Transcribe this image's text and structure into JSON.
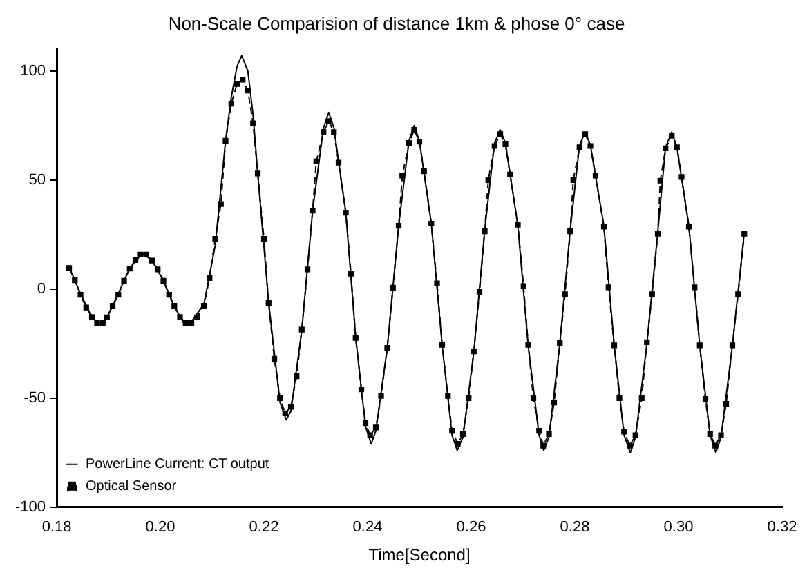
{
  "chart_data": {
    "type": "line",
    "title": "Non-Scale Comparision of distance 1km & phose 0° case",
    "xlabel": "Time[Second]",
    "xlim": [
      0.18,
      0.32
    ],
    "xticks": [
      {
        "value": 0.18,
        "label": "0.18"
      },
      {
        "value": 0.2,
        "label": "0.20"
      },
      {
        "value": 0.22,
        "label": "0.22"
      },
      {
        "value": 0.24,
        "label": "0.24"
      },
      {
        "value": 0.26,
        "label": "0.26"
      },
      {
        "value": 0.28,
        "label": "0.28"
      },
      {
        "value": 0.3,
        "label": "0.30"
      },
      {
        "value": 0.32,
        "label": "0.32"
      }
    ],
    "ylim": [
      -100,
      110
    ],
    "yticks": [
      -100,
      -50,
      0,
      50,
      100
    ],
    "grid": false,
    "legend": "bottom left",
    "series": [
      {
        "name": "PowerLine Current: CT output",
        "color": "#000000",
        "marker": "none",
        "line_style": "solid",
        "x": [
          0.1824,
          0.1846,
          0.1868,
          0.1883,
          0.1897,
          0.1919,
          0.1941,
          0.1962,
          0.1968,
          0.1984,
          0.2006,
          0.2027,
          0.2045,
          0.206,
          0.2084,
          0.2106,
          0.2126,
          0.2137,
          0.2148,
          0.2157,
          0.2169,
          0.2179,
          0.2188,
          0.2209,
          0.2231,
          0.2243,
          0.2252,
          0.2273,
          0.2294,
          0.2315,
          0.2325,
          0.2335,
          0.2358,
          0.2377,
          0.2396,
          0.2407,
          0.2416,
          0.2438,
          0.246,
          0.248,
          0.249,
          0.25,
          0.2523,
          0.2544,
          0.2563,
          0.2573,
          0.2584,
          0.2605,
          0.2626,
          0.2645,
          0.2656,
          0.2666,
          0.269,
          0.271,
          0.2731,
          0.274,
          0.275,
          0.2771,
          0.2791,
          0.2809,
          0.282,
          0.283,
          0.2856,
          0.2876,
          0.2895,
          0.2907,
          0.2917,
          0.2939,
          0.296,
          0.2975,
          0.2987,
          0.2997,
          0.302,
          0.3041,
          0.3061,
          0.3072,
          0.3082,
          0.3104,
          0.3127
        ],
        "values": [
          10,
          -2,
          -13,
          -16,
          -13,
          -2,
          9.5,
          15.5,
          16,
          13,
          4,
          -8,
          -15.5,
          -15,
          -7,
          20,
          68,
          88,
          102,
          107,
          100,
          80,
          53,
          -6,
          -52,
          -60,
          -56,
          -19,
          36,
          74,
          81,
          74,
          35,
          -22,
          -63,
          -71,
          -65,
          -27,
          29,
          68,
          75,
          68,
          30,
          -26,
          -67,
          -74,
          -68,
          -29,
          27,
          67,
          73,
          67,
          29,
          -26,
          -67,
          -74,
          -68,
          -25,
          27,
          66,
          72,
          66,
          29,
          -26,
          -67,
          -75,
          -68,
          -25,
          26,
          65,
          72,
          65,
          29,
          -26,
          -67,
          -75,
          -68,
          -26,
          26
        ]
      },
      {
        "name": "Optical Sensor",
        "color": "#000000",
        "marker": "square",
        "line_style": "dashed",
        "x": [
          0.1824,
          0.1835,
          0.1846,
          0.1857,
          0.1868,
          0.1878,
          0.1889,
          0.1897,
          0.1908,
          0.1919,
          0.193,
          0.1941,
          0.1952,
          0.1962,
          0.1973,
          0.1984,
          0.1995,
          0.2006,
          0.2017,
          0.2027,
          0.2038,
          0.2049,
          0.206,
          0.2071,
          0.2084,
          0.2095,
          0.2106,
          0.2117,
          0.2126,
          0.2137,
          0.2148,
          0.2159,
          0.2169,
          0.2179,
          0.2188,
          0.22,
          0.2209,
          0.222,
          0.2231,
          0.2241,
          0.2252,
          0.2263,
          0.2273,
          0.2284,
          0.2294,
          0.2301,
          0.2315,
          0.2325,
          0.2335,
          0.2344,
          0.2358,
          0.2368,
          0.2377,
          0.2388,
          0.2396,
          0.2405,
          0.2416,
          0.2426,
          0.2438,
          0.2449,
          0.246,
          0.2467,
          0.248,
          0.249,
          0.25,
          0.2509,
          0.2523,
          0.2534,
          0.2544,
          0.2555,
          0.2563,
          0.2574,
          0.2584,
          0.2595,
          0.2605,
          0.2616,
          0.2626,
          0.2633,
          0.2645,
          0.2656,
          0.2666,
          0.2675,
          0.269,
          0.2701,
          0.271,
          0.272,
          0.2731,
          0.2739,
          0.275,
          0.276,
          0.2771,
          0.2781,
          0.2791,
          0.2797,
          0.2809,
          0.282,
          0.283,
          0.284,
          0.2856,
          0.2865,
          0.2876,
          0.2886,
          0.2895,
          0.2906,
          0.2917,
          0.2929,
          0.2939,
          0.2949,
          0.296,
          0.2965,
          0.2975,
          0.2987,
          0.2997,
          0.3006,
          0.302,
          0.3031,
          0.3041,
          0.3052,
          0.3061,
          0.3071,
          0.3082,
          0.3092,
          0.3104,
          0.3115,
          0.3127
        ],
        "values": [
          9.6,
          4,
          -2.6,
          -8.5,
          -12.8,
          -15.5,
          -15.5,
          -13,
          -7.7,
          -2.6,
          3.8,
          9.4,
          13.3,
          15.8,
          15.8,
          13,
          9,
          3.8,
          -2.6,
          -7.7,
          -12.8,
          -15.5,
          -15.5,
          -13,
          -7.7,
          5,
          23,
          39,
          68,
          85,
          94,
          96,
          91,
          76,
          53,
          23,
          -6.4,
          -32,
          -50,
          -57,
          -54,
          -40,
          -18.6,
          9,
          36,
          58.5,
          72,
          77,
          72,
          58,
          35,
          7,
          -22.4,
          -46,
          -61.5,
          -67,
          -63.5,
          -49,
          -27,
          0.6,
          29,
          52,
          67,
          73,
          67.6,
          54,
          30,
          2.6,
          -25.6,
          -49,
          -65,
          -71,
          -66.5,
          -50,
          -28.6,
          -1.3,
          26.5,
          50,
          65.6,
          71,
          66.4,
          52.5,
          29.5,
          1.3,
          -25.6,
          -50,
          -65,
          -71.8,
          -66.5,
          -52,
          -24.8,
          -2.4,
          26.5,
          50,
          65,
          71,
          65.6,
          52,
          28.6,
          0.8,
          -25.8,
          -50,
          -65.4,
          -71.8,
          -67,
          -50,
          -24.4,
          -2.4,
          25.4,
          49.7,
          64.5,
          70.4,
          65,
          51.4,
          28.6,
          0.8,
          -25.8,
          -50.4,
          -66.5,
          -71.8,
          -67,
          -52.6,
          -25.8,
          -2.4,
          25.4
        ]
      }
    ]
  }
}
